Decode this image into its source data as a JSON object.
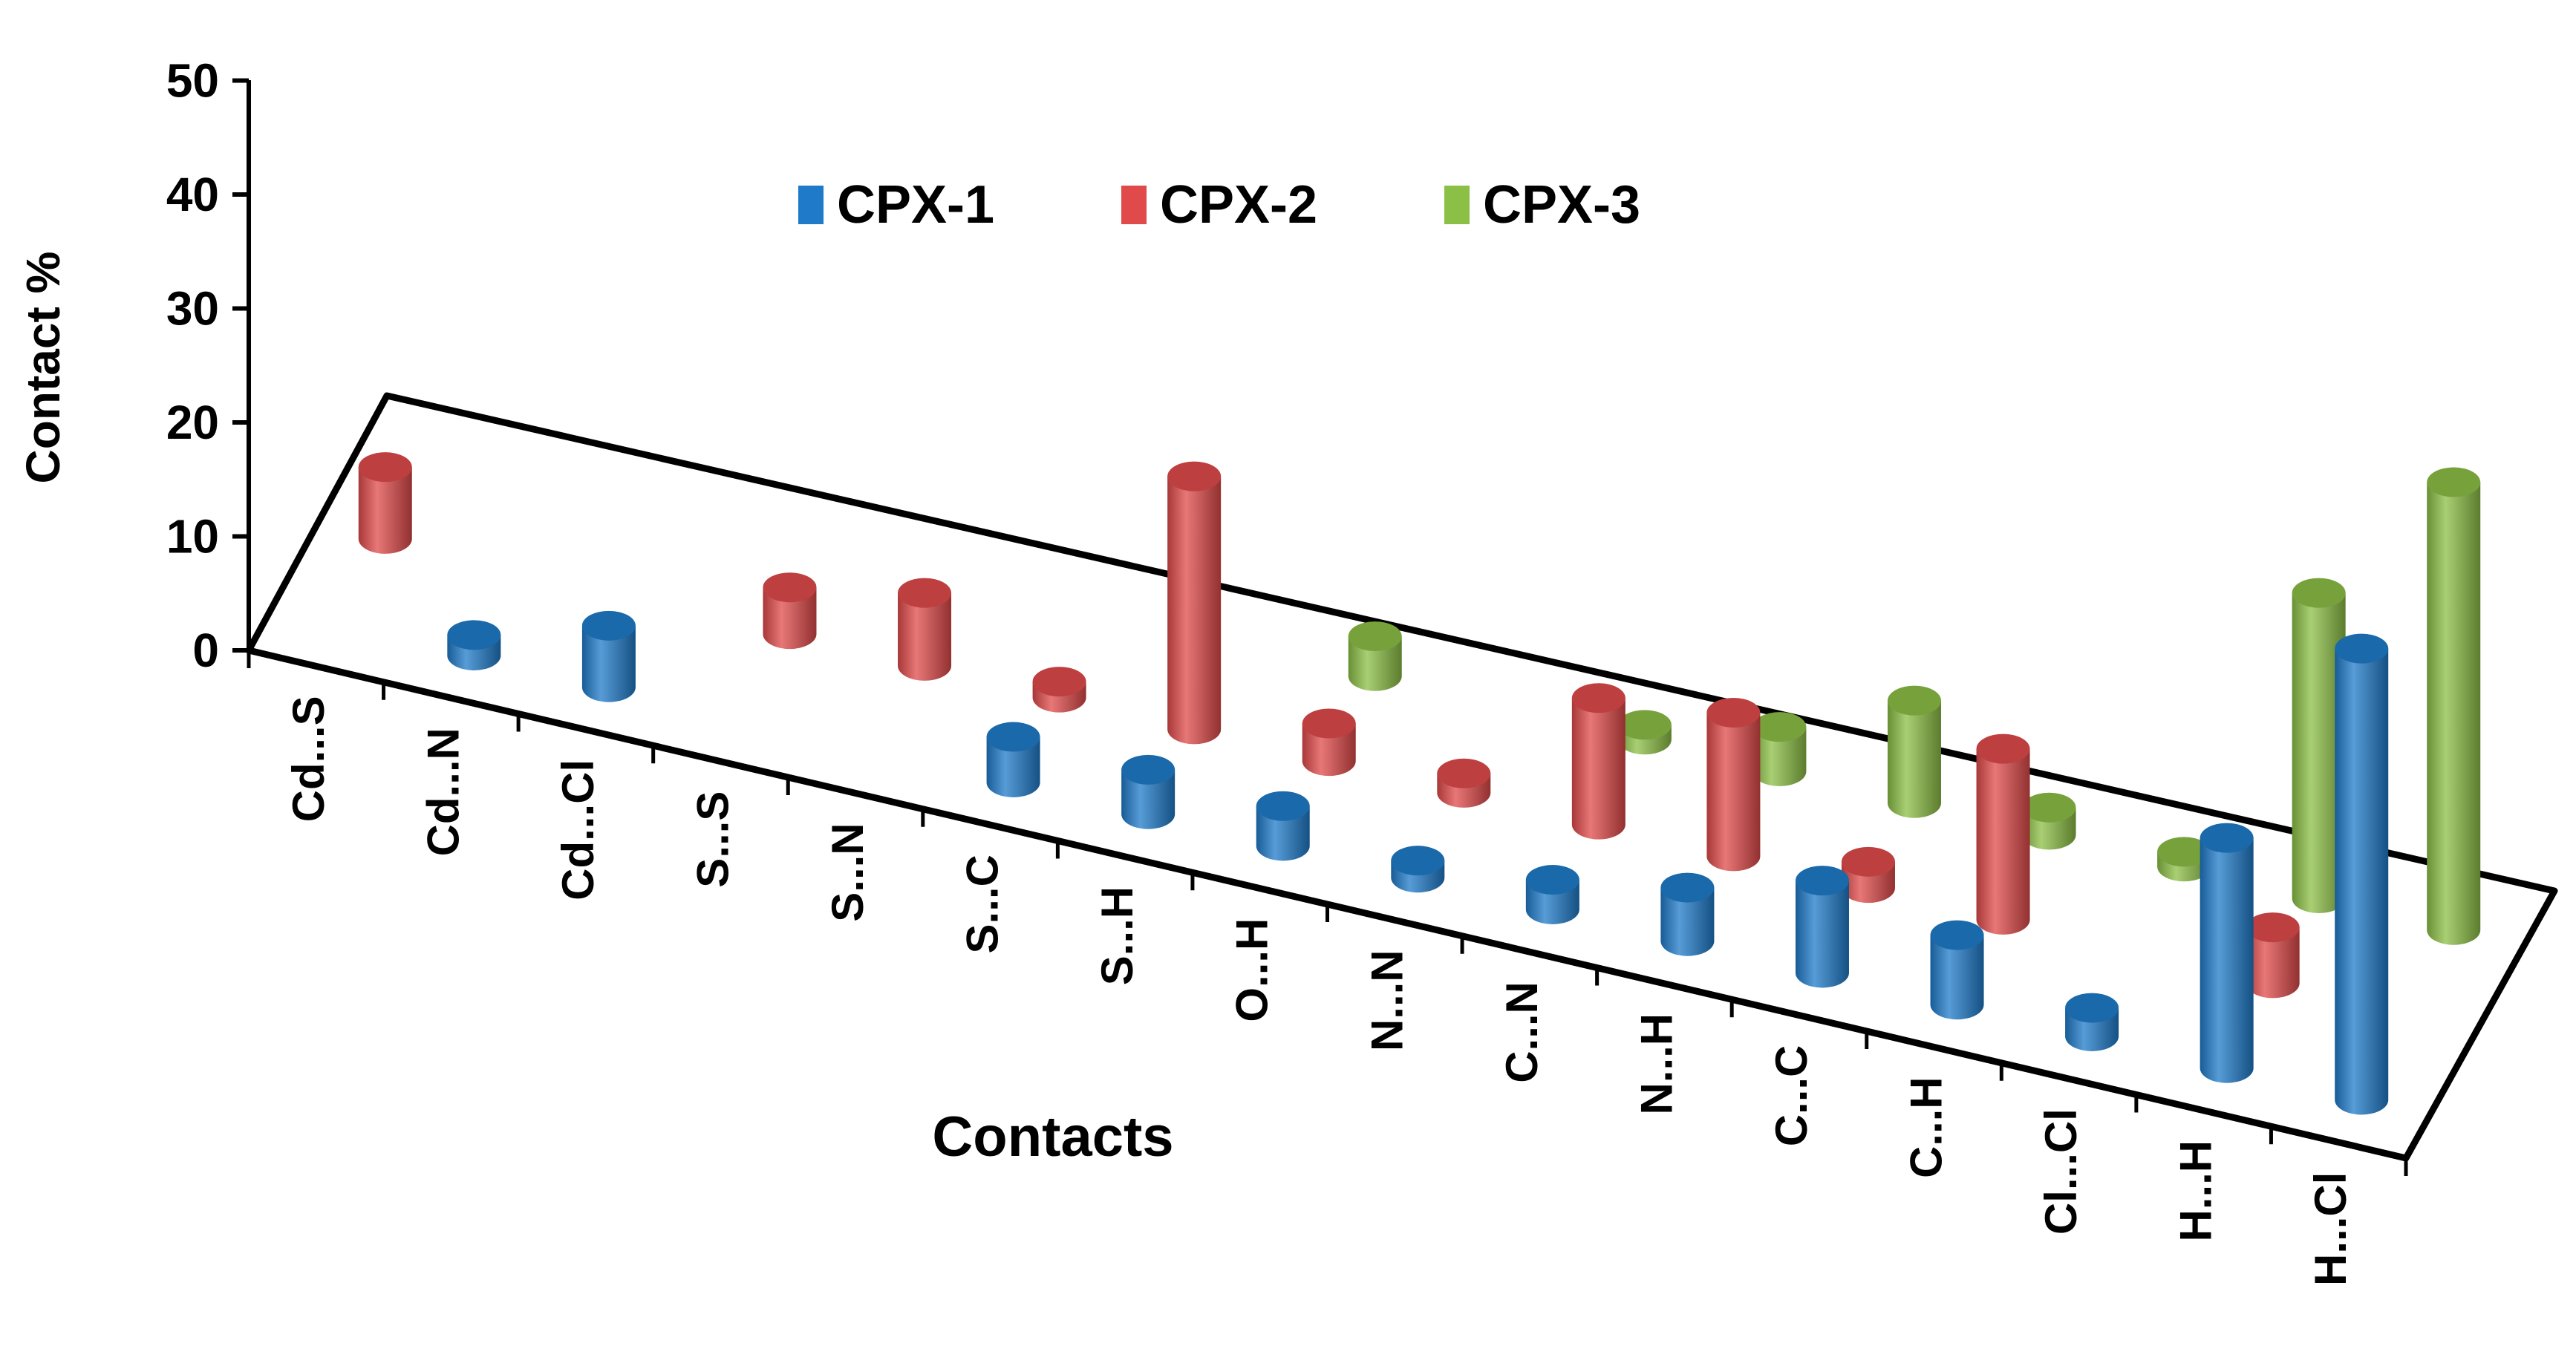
{
  "chart_data": {
    "type": "bar",
    "subtype": "3d-cylinder",
    "title": "",
    "xlabel": "Contacts",
    "ylabel": "Contact %",
    "ylim": [
      0,
      50
    ],
    "yticks": [
      "0",
      "10",
      "20",
      "30",
      "40",
      "50"
    ],
    "grid": false,
    "legend": "top-center",
    "categories": [
      "Cd...S",
      "Cd...N",
      "Cd...Cl",
      "S...S",
      "S...N",
      "S...C",
      "S...H",
      "O...H",
      "N...N",
      "C...N",
      "N...H",
      "C...C",
      "C...H",
      "Cl...Cl",
      "H...H",
      "H...Cl"
    ],
    "series": [
      {
        "name": "CPX-1",
        "color": "#1f7bc9",
        "values": [
          0,
          1.8,
          5.4,
          0,
          0,
          4.0,
          3.9,
          3.5,
          1.5,
          2.6,
          4.7,
          8.1,
          6.1,
          2.5,
          20.2,
          39.6
        ]
      },
      {
        "name": "CPX-2",
        "color": "#e04a4a",
        "values": [
          6.3,
          0,
          0,
          4.1,
          6.4,
          1.4,
          22.2,
          3.3,
          1.7,
          11.1,
          12.6,
          2.3,
          15.0,
          0,
          4.9,
          0
        ]
      },
      {
        "name": "CPX-3",
        "color": "#8cbf45",
        "values": [
          0,
          0,
          0,
          0,
          0,
          0,
          0,
          3.5,
          0,
          1.3,
          3.9,
          9.0,
          2.4,
          1.3,
          26.8,
          39.3
        ]
      }
    ]
  }
}
